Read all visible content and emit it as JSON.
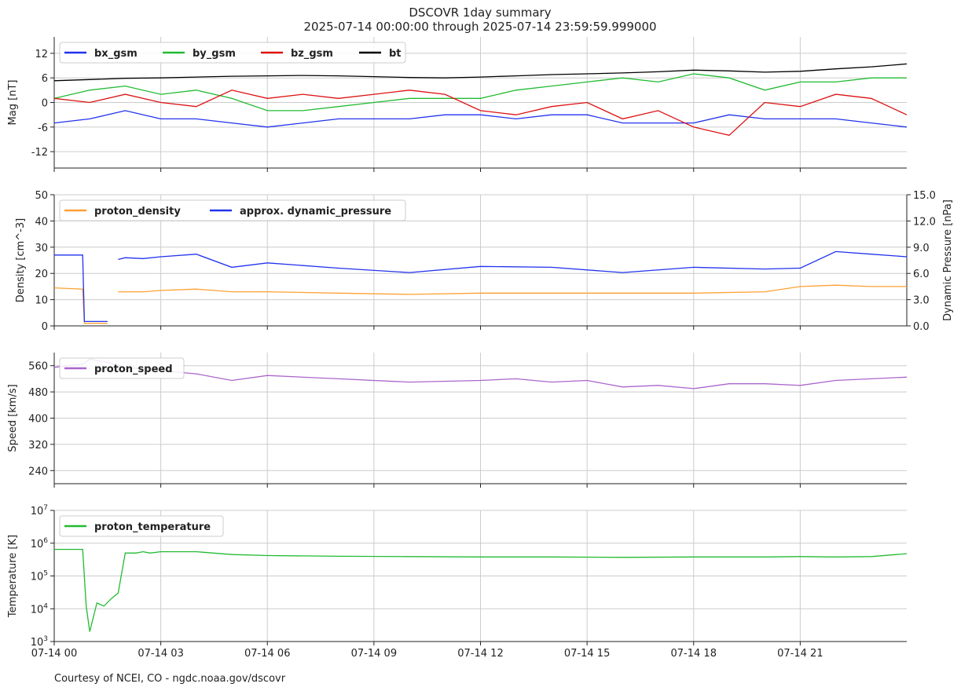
{
  "title_line1": "DSCOVR 1day summary",
  "title_line2": "2025-07-14 00:00:00 through 2025-07-14 23:59:59.999000",
  "footer": "Courtesy of NCEI, CO - ngdc.noaa.gov/dscovr",
  "x_ticks": [
    "07-14 00",
    "07-14 03",
    "07-14 06",
    "07-14 09",
    "07-14 12",
    "07-14 15",
    "07-14 18",
    "07-14 21"
  ],
  "x_range_hours": [
    0,
    24
  ],
  "chart_data": [
    {
      "type": "line",
      "ylabel": "Mag   [nT]",
      "ylim": [
        -16,
        16
      ],
      "yticks": [
        -12,
        -6,
        0,
        6,
        12
      ],
      "grid": true,
      "legend_position": "top-left",
      "series": [
        {
          "name": "bx_gsm",
          "color": "#2233ee",
          "x": [
            0,
            1,
            2,
            3,
            4,
            5,
            6,
            7,
            8,
            9,
            10,
            11,
            12,
            13,
            14,
            15,
            16,
            17,
            18,
            19,
            20,
            21,
            22,
            23,
            24
          ],
          "values": [
            -5,
            -4,
            -2,
            -4,
            -4,
            -5,
            -6,
            -5,
            -4,
            -4,
            -4,
            -3,
            -3,
            -4,
            -3,
            -3,
            -5,
            -5,
            -5,
            -3,
            -4,
            -4,
            -4,
            -5,
            -6
          ]
        },
        {
          "name": "by_gsm",
          "color": "#22bb33",
          "x": [
            0,
            1,
            2,
            3,
            4,
            5,
            6,
            7,
            8,
            9,
            10,
            11,
            12,
            13,
            14,
            15,
            16,
            17,
            18,
            19,
            20,
            21,
            22,
            23,
            24
          ],
          "values": [
            1,
            3,
            4,
            2,
            3,
            1,
            -2,
            -2,
            -1,
            0,
            1,
            1,
            1,
            3,
            4,
            5,
            6,
            5,
            7,
            6,
            3,
            5,
            5,
            6,
            6
          ]
        },
        {
          "name": "bz_gsm",
          "color": "#dd1111",
          "x": [
            0,
            1,
            2,
            3,
            4,
            5,
            6,
            7,
            8,
            9,
            10,
            11,
            12,
            13,
            14,
            15,
            16,
            17,
            18,
            19,
            20,
            21,
            22,
            23,
            24
          ],
          "values": [
            1,
            0,
            2,
            0,
            -1,
            3,
            1,
            2,
            1,
            2,
            3,
            2,
            -2,
            -3,
            -1,
            0,
            -4,
            -2,
            -6,
            -8,
            0,
            -1,
            2,
            1,
            -3
          ]
        },
        {
          "name": "bt",
          "color": "#000000",
          "x": [
            0,
            1,
            2,
            3,
            4,
            5,
            6,
            7,
            8,
            9,
            10,
            11,
            12,
            13,
            14,
            15,
            16,
            17,
            18,
            19,
            20,
            21,
            22,
            23,
            24
          ],
          "values": [
            5.3,
            5.6,
            5.9,
            6.0,
            6.2,
            6.4,
            6.5,
            6.6,
            6.5,
            6.3,
            6.1,
            6.0,
            6.2,
            6.5,
            6.8,
            7.0,
            7.2,
            7.5,
            7.9,
            7.7,
            7.4,
            7.6,
            8.2,
            8.7,
            9.4
          ]
        }
      ]
    },
    {
      "type": "line",
      "ylabel": "Density   [cm^-3]",
      "ylabel_right": "Dynamic Pressure   [nPa]",
      "ylim": [
        0,
        50
      ],
      "yticks": [
        0,
        10,
        20,
        30,
        40,
        50
      ],
      "ylim_right": [
        0,
        15
      ],
      "yticks_right": [
        "0.0",
        "3.0",
        "6.0",
        "9.0",
        "12.0",
        "15.0"
      ],
      "grid": true,
      "legend_position": "top-left",
      "series": [
        {
          "name": "proton_density",
          "color": "#ffa033",
          "axis": "left",
          "x": [
            0,
            0.8,
            0.85,
            1.5,
            1.55,
            1.8,
            2.0,
            2.5,
            3,
            4,
            5,
            6,
            8,
            10,
            12,
            14,
            16,
            18,
            20,
            21,
            22,
            23,
            24
          ],
          "values": [
            14.5,
            14,
            1,
            1,
            null,
            13,
            13,
            13,
            13.5,
            14,
            13,
            13,
            12.5,
            12,
            12.5,
            12.5,
            12.5,
            12.5,
            13,
            15,
            15.5,
            15,
            15
          ]
        },
        {
          "name": "approx. dynamic_pressure",
          "color": "#2233ee",
          "axis": "right",
          "x": [
            0,
            0.8,
            0.85,
            1.5,
            1.55,
            1.8,
            2.0,
            2.5,
            3,
            4,
            5,
            6,
            8,
            10,
            12,
            14,
            16,
            18,
            20,
            21,
            22,
            23,
            24
          ],
          "values": [
            8.1,
            8.1,
            0.5,
            0.5,
            null,
            7.6,
            7.8,
            7.7,
            7.9,
            8.2,
            6.7,
            7.2,
            6.6,
            6.1,
            6.8,
            6.7,
            6.1,
            6.7,
            6.5,
            6.6,
            8.5,
            8.2,
            7.9
          ]
        }
      ]
    },
    {
      "type": "line",
      "ylabel": "Speed   [km/s]",
      "ylim": [
        200,
        600
      ],
      "yticks": [
        240,
        320,
        400,
        480,
        560
      ],
      "grid": true,
      "legend_position": "top-left",
      "series": [
        {
          "name": "proton_speed",
          "color": "#aa66cc",
          "x": [
            0,
            0.8,
            1,
            1.5,
            2,
            3,
            4,
            5,
            6,
            8,
            10,
            12,
            13,
            14,
            15,
            16,
            17,
            18,
            19,
            20,
            21,
            22,
            23,
            24
          ],
          "values": [
            555,
            565,
            580,
            570,
            555,
            545,
            535,
            515,
            530,
            520,
            510,
            515,
            520,
            510,
            515,
            495,
            500,
            490,
            505,
            505,
            500,
            515,
            520,
            525
          ]
        }
      ]
    },
    {
      "type": "line",
      "ylabel": "Temperature   [K]",
      "yscale": "log",
      "ylim": [
        1000,
        10000000
      ],
      "yticks": [
        "10^3",
        "10^4",
        "10^5",
        "10^6",
        "10^7"
      ],
      "grid": true,
      "legend_position": "top-left",
      "series": [
        {
          "name": "proton_temperature",
          "color": "#22bb33",
          "x": [
            0,
            0.8,
            0.9,
            1.0,
            1.2,
            1.4,
            1.6,
            1.8,
            2.0,
            2.3,
            2.5,
            2.7,
            3,
            4,
            5,
            6,
            8,
            10,
            12,
            14,
            16,
            18,
            20,
            21,
            22,
            23,
            24
          ],
          "values": [
            650000,
            650000,
            12000,
            2000,
            15000,
            12000,
            20000,
            30000,
            500000,
            500000,
            550000,
            500000,
            550000,
            550000,
            450000,
            420000,
            400000,
            390000,
            380000,
            380000,
            370000,
            380000,
            380000,
            390000,
            380000,
            390000,
            480000
          ]
        }
      ]
    }
  ]
}
